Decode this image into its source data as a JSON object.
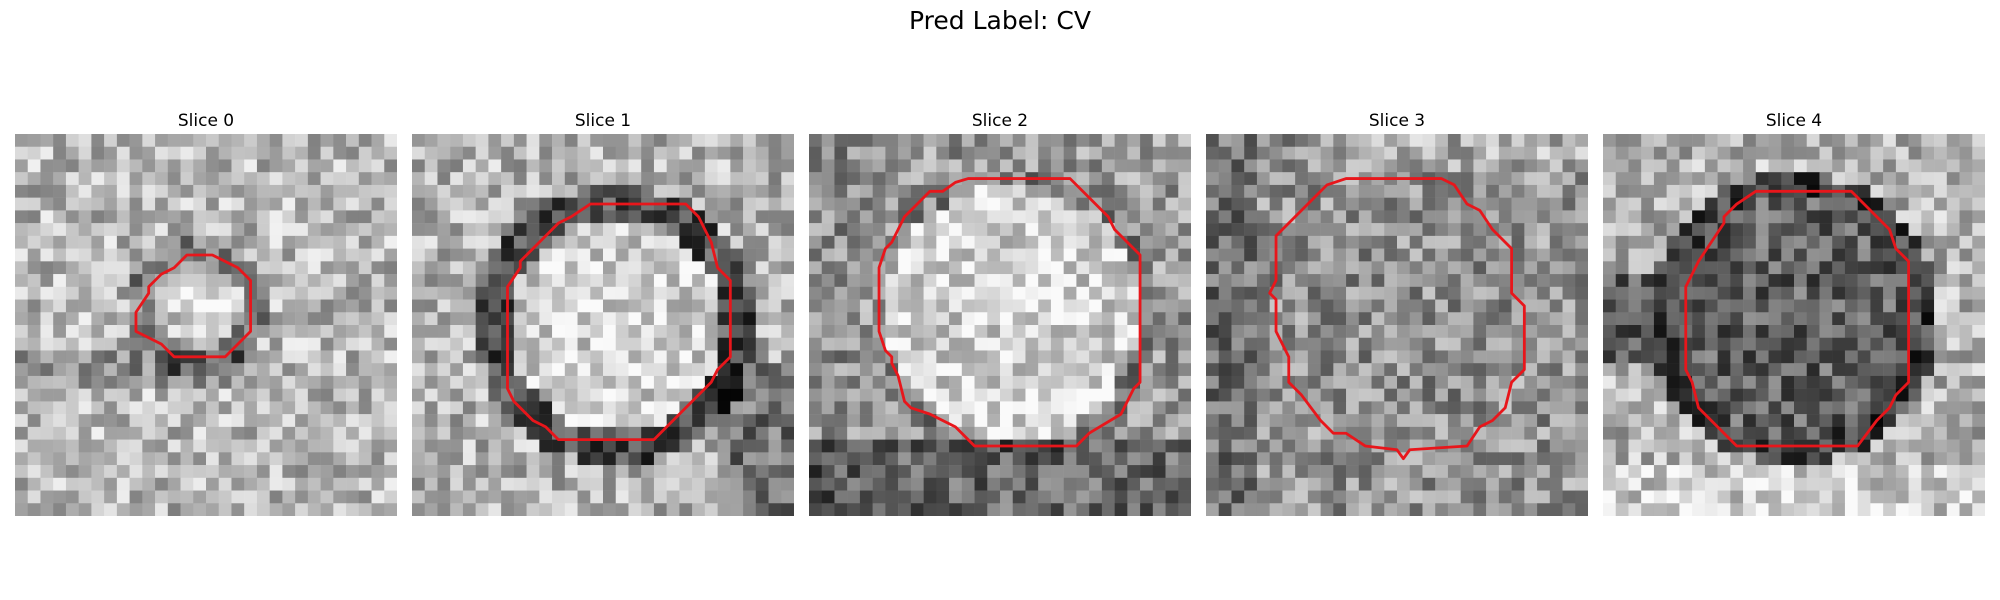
{
  "figure": {
    "title": "Pred Label: CV"
  },
  "colors": {
    "contour": "#e8161b",
    "background": "#ffffff"
  },
  "panels": [
    {
      "title": "Slice 0",
      "seed": 11,
      "pattern": "small-ring"
    },
    {
      "title": "Slice 1",
      "seed": 23,
      "pattern": "bright-core-dark-ring"
    },
    {
      "title": "Slice 2",
      "seed": 37,
      "pattern": "bright-core"
    },
    {
      "title": "Slice 3",
      "seed": 41,
      "pattern": "mottled"
    },
    {
      "title": "Slice 4",
      "seed": 53,
      "pattern": "dark-core"
    }
  ]
}
